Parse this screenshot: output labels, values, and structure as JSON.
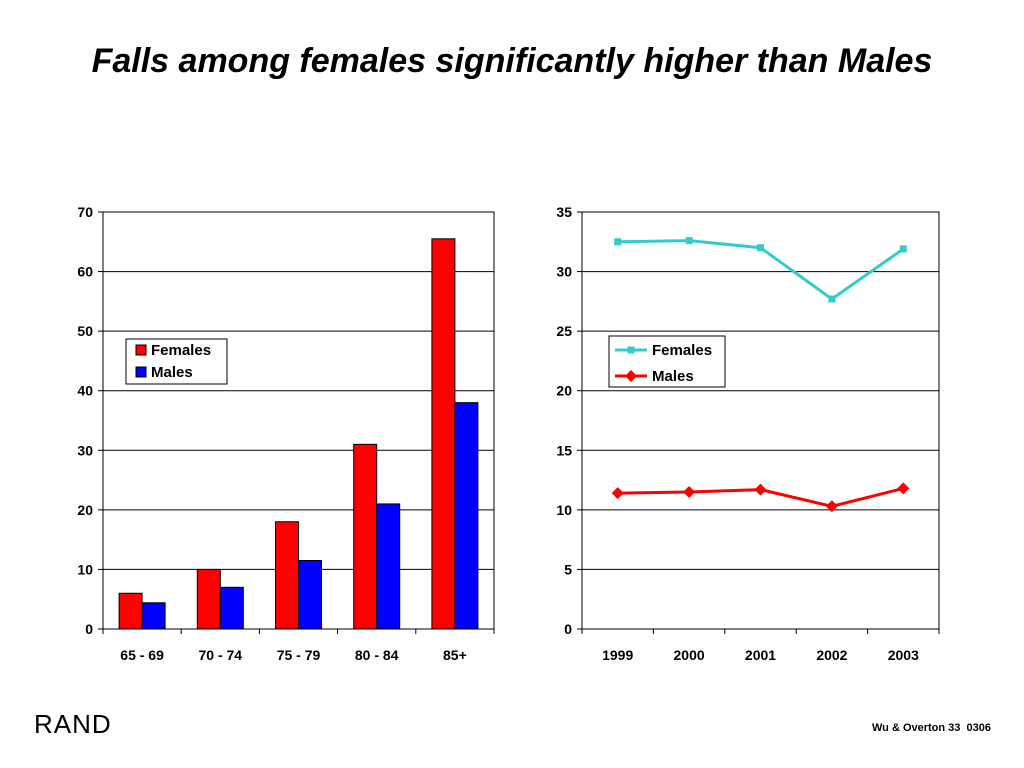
{
  "slide": {
    "title": "Falls among females significantly higher than Males",
    "logo": "RAND",
    "footer": "Wu & Overton 33  0306"
  },
  "colors": {
    "females_bar": "#ff0000",
    "males_bar": "#0000ff",
    "females_line": "#33cccc",
    "males_line": "#ff0000"
  },
  "chart_data": [
    {
      "type": "bar",
      "categories": [
        "65 - 69",
        "70 - 74",
        "75 - 79",
        "80 - 84",
        "85+"
      ],
      "series": [
        {
          "name": "Females",
          "values": [
            6,
            10,
            18,
            31,
            65.5
          ]
        },
        {
          "name": "Males",
          "values": [
            4.4,
            7,
            11.5,
            21,
            38
          ]
        }
      ],
      "yticks": [
        "0",
        "10",
        "20",
        "30",
        "40",
        "50",
        "60",
        "70"
      ],
      "ylim": [
        0,
        70
      ],
      "grid": true,
      "legend": "upper-left",
      "title": "",
      "xlabel": "",
      "ylabel": ""
    },
    {
      "type": "line",
      "categories": [
        "1999",
        "2000",
        "2001",
        "2002",
        "2003"
      ],
      "series": [
        {
          "name": "Females",
          "values": [
            32.5,
            32.6,
            32,
            27.7,
            31.9
          ],
          "marker": "square"
        },
        {
          "name": "Males",
          "values": [
            11.4,
            11.5,
            11.7,
            10.3,
            11.8
          ],
          "marker": "diamond"
        }
      ],
      "yticks": [
        "0",
        "5",
        "10",
        "15",
        "20",
        "25",
        "30",
        "35"
      ],
      "ylim": [
        0,
        35
      ],
      "grid": true,
      "legend": "upper-left",
      "title": "",
      "xlabel": "",
      "ylabel": ""
    }
  ]
}
